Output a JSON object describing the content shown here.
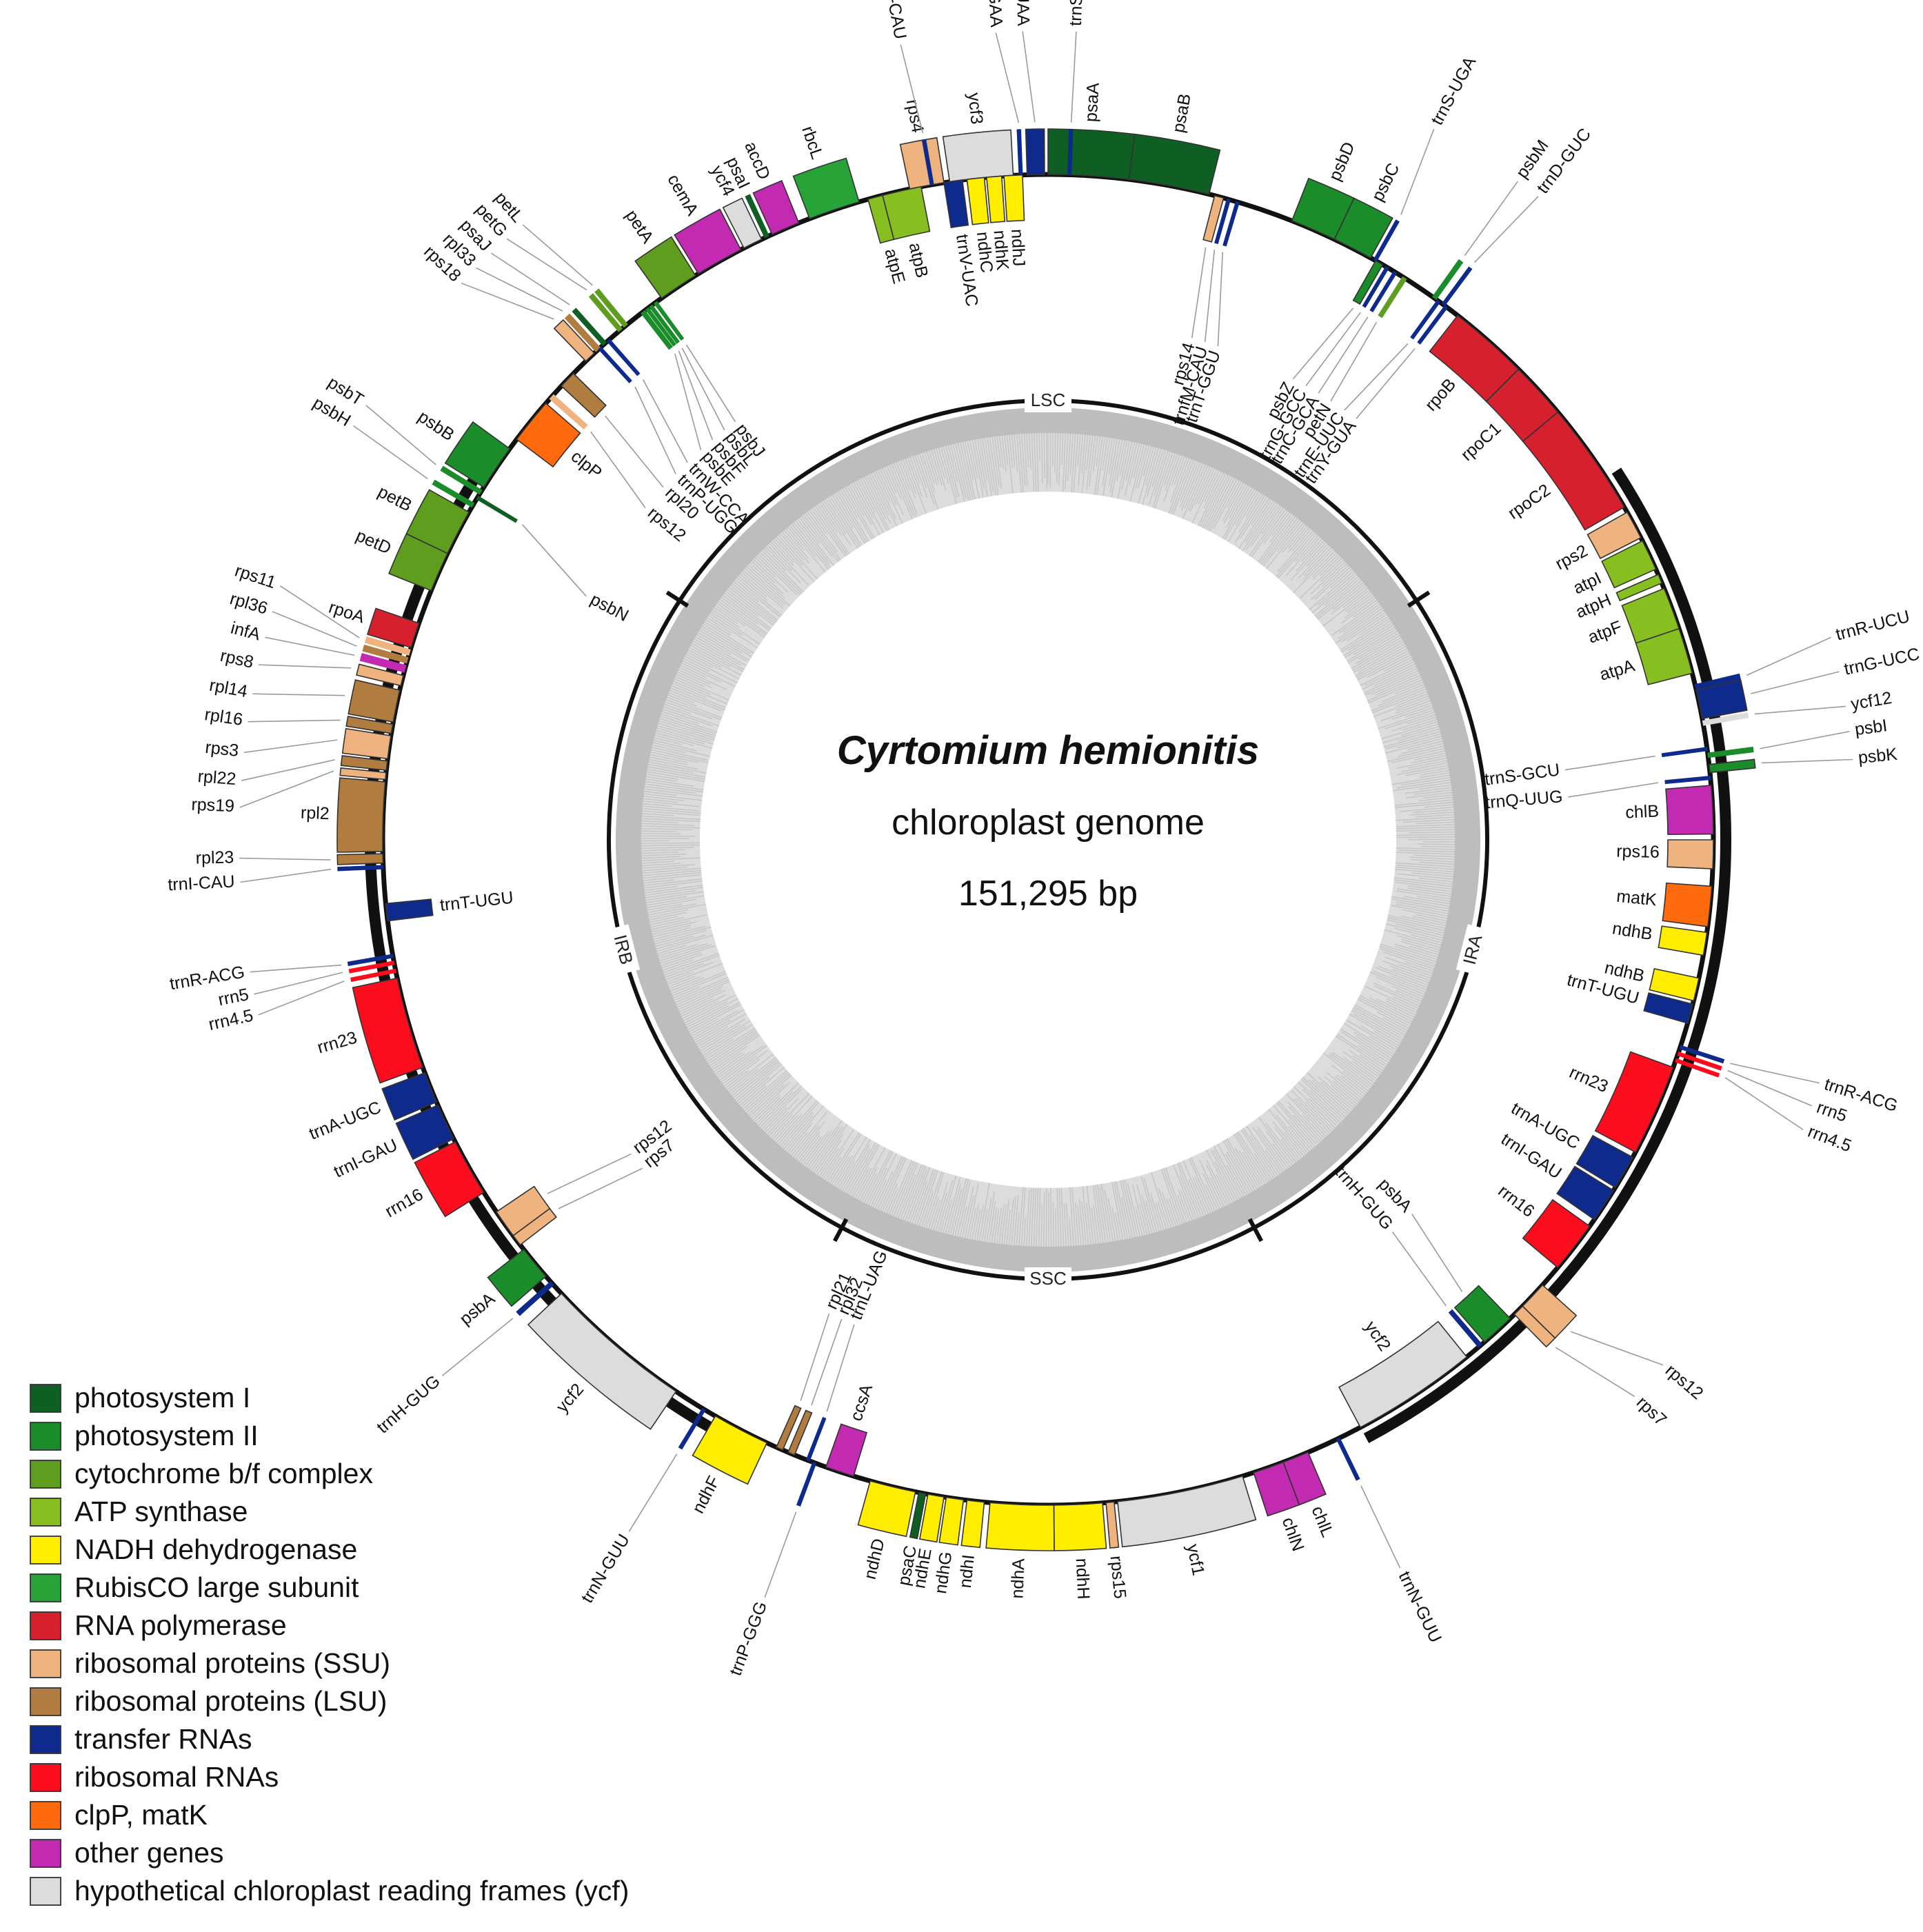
{
  "title": {
    "species": "Cyrtomium hemionitis",
    "subtitle": "chloroplast genome",
    "length": "151,295 bp"
  },
  "categories": {
    "psi": {
      "label": "photosystem I",
      "color": "#0f5f24"
    },
    "psii": {
      "label": "photosystem II",
      "color": "#1a8c2a"
    },
    "cyt": {
      "label": "cytochrome b/f complex",
      "color": "#5e9d1e"
    },
    "atp": {
      "label": "ATP synthase",
      "color": "#86bf1f"
    },
    "ndh": {
      "label": "NADH dehydrogenase",
      "color": "#ffee00"
    },
    "rbc": {
      "label": "RubisCO large subunit",
      "color": "#27a337"
    },
    "rpo": {
      "label": "RNA polymerase",
      "color": "#d7202d"
    },
    "ssu": {
      "label": "ribosomal proteins (SSU)",
      "color": "#efb37f"
    },
    "lsu": {
      "label": "ribosomal proteins (LSU)",
      "color": "#b07c40"
    },
    "trna": {
      "label": "transfer RNAs",
      "color": "#0d2a8c"
    },
    "rrna": {
      "label": "ribosomal RNAs",
      "color": "#fb0d1d"
    },
    "clp": {
      "label": "clpP, matK",
      "color": "#ff6a0c"
    },
    "other": {
      "label": "other genes",
      "color": "#c22ab2"
    },
    "ycf": {
      "label": "hypothetical chloroplast reading frames (ycf)",
      "color": "#dcdcdc"
    }
  },
  "legend_order": [
    "psi",
    "psii",
    "cyt",
    "atp",
    "ndh",
    "rbc",
    "rpo",
    "ssu",
    "lsu",
    "trna",
    "rrna",
    "clp",
    "other",
    "ycf"
  ],
  "regions": [
    {
      "name": "LSC",
      "start_deg": 303,
      "end_deg": 57
    },
    {
      "name": "IRA",
      "start_deg": 57,
      "end_deg": 152
    },
    {
      "name": "SSC",
      "start_deg": 152,
      "end_deg": 208
    },
    {
      "name": "IRB",
      "start_deg": 208,
      "end_deg": 303
    }
  ],
  "genes": [
    {
      "name": "rps4",
      "cat": "ssu",
      "start": 348,
      "end": 351,
      "side": "out"
    },
    {
      "name": "ycf3",
      "cat": "ycf",
      "start": 351.5,
      "end": 357,
      "side": "out"
    },
    {
      "name": "psaA",
      "cat": "psi",
      "start": 0,
      "end": 7,
      "side": "out"
    },
    {
      "name": "psaB",
      "cat": "psi",
      "start": 7,
      "end": 14,
      "side": "out"
    },
    {
      "name": "rps14",
      "cat": "ssu",
      "start": 14.5,
      "end": 15.3,
      "side": "in",
      "label_deg": 16
    },
    {
      "name": "trnfM-CAU",
      "cat": "trna",
      "start": 15.6,
      "end": 15.9,
      "side": "in",
      "label_deg": 17.5
    },
    {
      "name": "trnT-GGU",
      "cat": "trna",
      "start": 16.4,
      "end": 16.7,
      "side": "in",
      "label_deg": 19
    },
    {
      "name": "psbD",
      "cat": "psii",
      "start": 21.5,
      "end": 25.5,
      "side": "out"
    },
    {
      "name": "psbC",
      "cat": "psii",
      "start": 25.5,
      "end": 29,
      "side": "out"
    },
    {
      "name": "psbZ",
      "cat": "psii",
      "start": 29.5,
      "end": 30.2,
      "side": "in",
      "label_deg": 28
    },
    {
      "name": "trnG-GCC",
      "cat": "trna",
      "start": 30.5,
      "end": 30.8,
      "side": "in",
      "label_deg": 29.6
    },
    {
      "name": "trnC-GCA",
      "cat": "trna",
      "start": 31.3,
      "end": 31.6,
      "side": "in",
      "label_deg": 31.2
    },
    {
      "name": "petN",
      "cat": "cyt",
      "start": 32.2,
      "end": 32.6,
      "side": "in",
      "label_deg": 32.8
    },
    {
      "name": "trnS-UGA",
      "cat": "trna",
      "start": 29.3,
      "end": 29.6,
      "side": "out",
      "label_deg": 28.5
    },
    {
      "name": "psbM",
      "cat": "psii",
      "start": 35.3,
      "end": 35.7,
      "side": "out",
      "label_deg": 35.5
    },
    {
      "name": "trnD-GUC",
      "cat": "trna",
      "start": 36.3,
      "end": 36.6,
      "side": "out",
      "label_deg": 37.3
    },
    {
      "name": "trnE-UUC",
      "cat": "trna",
      "start": 35.8,
      "end": 36.1,
      "side": "in",
      "label_deg": 34.6
    },
    {
      "name": "trnY-GUA",
      "cat": "trna",
      "start": 36.6,
      "end": 36.9,
      "side": "in",
      "label_deg": 36.2
    },
    {
      "name": "rpoB",
      "cat": "rpo",
      "start": 38,
      "end": 45,
      "side": "in"
    },
    {
      "name": "rpoC1",
      "cat": "rpo",
      "start": 45,
      "end": 50,
      "side": "in"
    },
    {
      "name": "rpoC2",
      "cat": "rpo",
      "start": 50,
      "end": 60,
      "side": "in"
    },
    {
      "name": "rps2",
      "cat": "ssu",
      "start": 60.5,
      "end": 63,
      "side": "in"
    },
    {
      "name": "atpI",
      "cat": "atp",
      "start": 63.3,
      "end": 66,
      "side": "in"
    },
    {
      "name": "atpH",
      "cat": "atp",
      "start": 66.5,
      "end": 67.3,
      "side": "in"
    },
    {
      "name": "atpF",
      "cat": "atp",
      "start": 67.8,
      "end": 71.5,
      "side": "in"
    },
    {
      "name": "atpA",
      "cat": "atp",
      "start": 71.5,
      "end": 75.5,
      "side": "in"
    },
    {
      "name": "trnR-UCU",
      "cat": "trna",
      "start": 76.5,
      "end": 77,
      "side": "out",
      "label_deg": 75.5
    },
    {
      "name": "trnG-UCC",
      "cat": "trna",
      "start": 77,
      "end": 79.5,
      "side": "out",
      "label_deg": 78
    },
    {
      "name": "ycf12",
      "cat": "ycf",
      "start": 79.7,
      "end": 80.1,
      "side": "out",
      "label_deg": 80.5
    },
    {
      "name": "trnS-GCU",
      "cat": "trna",
      "start": 82,
      "end": 82.3,
      "side": "in",
      "label_deg": 82.3
    },
    {
      "name": "psbI",
      "cat": "psii",
      "start": 82.5,
      "end": 82.9,
      "side": "out",
      "label_deg": 82.3
    },
    {
      "name": "psbK",
      "cat": "psii",
      "start": 83.5,
      "end": 84.2,
      "side": "out",
      "label_deg": 84.3
    },
    {
      "name": "trnQ-UUG",
      "cat": "trna",
      "start": 84.5,
      "end": 84.8,
      "side": "in",
      "label_deg": 85.3
    },
    {
      "name": "chlB",
      "cat": "other",
      "start": 85.3,
      "end": 89.5,
      "side": "in"
    },
    {
      "name": "rps16",
      "cat": "ssu",
      "start": 90,
      "end": 92.5,
      "side": "in"
    },
    {
      "name": "matK",
      "cat": "clp",
      "start": 94,
      "end": 97.5,
      "side": "in"
    },
    {
      "name": "ndhB",
      "cat": "ndh",
      "start": 98,
      "end": 100,
      "side": "in"
    },
    {
      "name": "ndhB",
      "cat": "ndh",
      "start": 102,
      "end": 104,
      "side": "in"
    },
    {
      "name": "trnT-UGU",
      "cat": "trna",
      "start": 104.3,
      "end": 106,
      "side": "in"
    },
    {
      "name": "trnR-ACG",
      "cat": "trna",
      "start": 108,
      "end": 108.3,
      "side": "out",
      "label_deg": 107.5
    },
    {
      "name": "rrn5",
      "cat": "rrna",
      "start": 108.6,
      "end": 108.9,
      "side": "out",
      "label_deg": 109.2
    },
    {
      "name": "rrn4.5",
      "cat": "rrna",
      "start": 109.2,
      "end": 109.5,
      "side": "out",
      "label_deg": 111
    },
    {
      "name": "rrn23",
      "cat": "rrna",
      "start": 110,
      "end": 118,
      "side": "in"
    },
    {
      "name": "trnA-UGC",
      "cat": "trna",
      "start": 118.5,
      "end": 121.5,
      "side": "in"
    },
    {
      "name": "trnI-GAU",
      "cat": "trna",
      "start": 121.8,
      "end": 124.8,
      "side": "in"
    },
    {
      "name": "rrn16",
      "cat": "rrna",
      "start": 125.5,
      "end": 130,
      "side": "in"
    },
    {
      "name": "rps12",
      "cat": "ssu",
      "start": 132,
      "end": 134.5,
      "side": "out",
      "label_deg": 130.5
    },
    {
      "name": "rps7",
      "cat": "ssu",
      "start": 134.5,
      "end": 135.5,
      "side": "out",
      "label_deg": 133.5
    },
    {
      "name": "psbA",
      "cat": "psii",
      "start": 136,
      "end": 139,
      "side": "in",
      "label_deg": 135.8
    },
    {
      "name": "trnH-GUG",
      "cat": "trna",
      "start": 139.3,
      "end": 139.7,
      "side": "in",
      "label_deg": 138.7
    },
    {
      "name": "ycf2",
      "cat": "ycf",
      "start": 141,
      "end": 152,
      "side": "in"
    },
    {
      "name": "trnN-GUU",
      "cat": "trna",
      "start": 154,
      "end": 154.3,
      "side": "out",
      "label_deg": 154.2
    },
    {
      "name": "chlL",
      "cat": "other",
      "start": 157,
      "end": 159.3,
      "side": "out"
    },
    {
      "name": "chlN",
      "cat": "other",
      "start": 159.3,
      "end": 162,
      "side": "out"
    },
    {
      "name": "ycf1",
      "cat": "ycf",
      "start": 163,
      "end": 174,
      "side": "out"
    },
    {
      "name": "rps15",
      "cat": "ssu",
      "start": 174.3,
      "end": 175,
      "side": "out"
    },
    {
      "name": "ndhH",
      "cat": "ndh",
      "start": 175.3,
      "end": 179.5,
      "side": "out"
    },
    {
      "name": "ndhA",
      "cat": "ndh",
      "start": 179.5,
      "end": 185,
      "side": "out"
    },
    {
      "name": "ndhI",
      "cat": "ndh",
      "start": 185.5,
      "end": 187,
      "side": "out"
    },
    {
      "name": "ndhG",
      "cat": "ndh",
      "start": 187.3,
      "end": 188.8,
      "side": "out"
    },
    {
      "name": "ndhE",
      "cat": "ndh",
      "start": 189,
      "end": 190.4,
      "side": "out"
    },
    {
      "name": "psaC",
      "cat": "psi",
      "start": 190.6,
      "end": 191.2,
      "side": "out"
    },
    {
      "name": "ndhD",
      "cat": "ndh",
      "start": 191.5,
      "end": 195.5,
      "side": "out"
    },
    {
      "name": "ccsA",
      "cat": "other",
      "start": 197,
      "end": 199.5,
      "side": "in"
    },
    {
      "name": "trnP-GGG",
      "cat": "trna",
      "start": 200.4,
      "end": 200.7,
      "side": "out",
      "label_deg": 200.5
    },
    {
      "name": "trnL-UAG",
      "cat": "trna",
      "start": 201,
      "end": 201.3,
      "side": "in",
      "label_deg": 201.8
    },
    {
      "name": "rpl32",
      "cat": "lsu",
      "start": 202.4,
      "end": 203,
      "side": "in",
      "label_deg": 203.3
    },
    {
      "name": "rpl21",
      "cat": "lsu",
      "start": 203.5,
      "end": 204.1,
      "side": "in",
      "label_deg": 204.8
    },
    {
      "name": "ndhF",
      "cat": "ndh",
      "start": 205,
      "end": 210,
      "side": "out"
    },
    {
      "name": "trnN-GUU",
      "cat": "trna",
      "start": 211,
      "end": 211.3,
      "side": "out",
      "label_deg": 211.2
    },
    {
      "name": "ycf2",
      "cat": "ycf",
      "start": 214,
      "end": 227,
      "side": "out"
    },
    {
      "name": "trnH-GUG",
      "cat": "trna",
      "start": 228,
      "end": 228.4,
      "side": "out",
      "label_deg": 228.5
    },
    {
      "name": "psbA",
      "cat": "psii",
      "start": 229,
      "end": 232,
      "side": "out"
    },
    {
      "name": "rps7",
      "cat": "ssu",
      "start": 232.5,
      "end": 233.5,
      "side": "in",
      "label_deg": 231
    },
    {
      "name": "rps12",
      "cat": "ssu",
      "start": 233.5,
      "end": 236,
      "side": "in",
      "label_deg": 233
    },
    {
      "name": "rrn16",
      "cat": "rrna",
      "start": 238,
      "end": 243,
      "side": "out"
    },
    {
      "name": "trnI-GAU",
      "cat": "trna",
      "start": 243.3,
      "end": 246.5,
      "side": "out"
    },
    {
      "name": "trnA-UGC",
      "cat": "trna",
      "start": 246.8,
      "end": 249.5,
      "side": "out"
    },
    {
      "name": "rrn23",
      "cat": "rrna",
      "start": 250,
      "end": 258,
      "side": "out"
    },
    {
      "name": "rrn4.5",
      "cat": "rrna",
      "start": 258.5,
      "end": 258.8,
      "side": "out",
      "label_deg": 257.5
    },
    {
      "name": "rrn5",
      "cat": "rrna",
      "start": 259.2,
      "end": 259.5,
      "side": "out",
      "label_deg": 259
    },
    {
      "name": "trnR-ACG",
      "cat": "trna",
      "start": 259.8,
      "end": 260.1,
      "side": "out",
      "label_deg": 260.6
    },
    {
      "name": "trnT-UGU",
      "cat": "trna",
      "start": 263,
      "end": 264.5,
      "side": "in"
    },
    {
      "name": "trnI-CAU",
      "cat": "trna",
      "start": 267.5,
      "end": 267.8,
      "side": "out",
      "label_deg": 267
    },
    {
      "name": "rpl23",
      "cat": "lsu",
      "start": 268,
      "end": 268.8,
      "side": "out",
      "label_deg": 268.7
    },
    {
      "name": "rpl2",
      "cat": "lsu",
      "start": 269,
      "end": 275,
      "side": "out"
    },
    {
      "name": "rps19",
      "cat": "ssu",
      "start": 275.2,
      "end": 275.8,
      "side": "out",
      "label_deg": 272.3
    },
    {
      "name": "rpl22",
      "cat": "lsu",
      "start": 276,
      "end": 276.8,
      "side": "out",
      "label_deg": 274.2
    },
    {
      "name": "rps3",
      "cat": "ssu",
      "start": 277,
      "end": 279,
      "side": "out",
      "label_deg": 276.2
    },
    {
      "name": "rpl16",
      "cat": "lsu",
      "start": 279.2,
      "end": 280,
      "side": "out",
      "label_deg": 278.4
    },
    {
      "name": "rpl14",
      "cat": "lsu",
      "start": 280.2,
      "end": 283,
      "side": "out",
      "label_deg": 280.4
    },
    {
      "name": "rps8",
      "cat": "ssu",
      "start": 283.4,
      "end": 284.3,
      "side": "out",
      "label_deg": 282.5
    },
    {
      "name": "infA",
      "cat": "other",
      "start": 284.6,
      "end": 285.2,
      "side": "out",
      "label_deg": 284.5
    },
    {
      "name": "rpl36",
      "cat": "lsu",
      "start": 285.4,
      "end": 285.9,
      "side": "out",
      "label_deg": 286.4
    },
    {
      "name": "rps11",
      "cat": "ssu",
      "start": 286.1,
      "end": 286.6,
      "side": "out",
      "label_deg": 288.3
    },
    {
      "name": "rpoA",
      "cat": "rpo",
      "start": 286.8,
      "end": 289,
      "side": "out"
    },
    {
      "name": "petD",
      "cat": "cyt",
      "start": 292,
      "end": 295.5,
      "side": "out"
    },
    {
      "name": "petB",
      "cat": "cyt",
      "start": 295.5,
      "end": 299.5,
      "side": "out"
    },
    {
      "name": "psbH",
      "cat": "psii",
      "start": 300,
      "end": 300.4,
      "side": "out",
      "label_deg": 300.8
    },
    {
      "name": "psbN",
      "cat": "psi",
      "start": 300.8,
      "end": 301.1,
      "side": "in",
      "label_deg": 297.8
    },
    {
      "name": "psbT",
      "cat": "psii",
      "start": 301.3,
      "end": 301.7,
      "side": "out",
      "label_deg": 302.5
    },
    {
      "name": "psbB",
      "cat": "psii",
      "start": 302,
      "end": 306,
      "side": "out"
    },
    {
      "name": "clpP",
      "cat": "clp",
      "start": 307,
      "end": 311,
      "side": "in"
    },
    {
      "name": "rps12",
      "cat": "ssu",
      "start": 311.5,
      "end": 312,
      "side": "in",
      "label_deg": 309.5
    },
    {
      "name": "rpl20",
      "cat": "lsu",
      "start": 313,
      "end": 314.5,
      "side": "in",
      "label_deg": 312.5
    },
    {
      "name": "rps18",
      "cat": "ssu",
      "start": 316,
      "end": 317,
      "side": "out",
      "label_deg": 313.5
    },
    {
      "name": "rpl33",
      "cat": "lsu",
      "start": 317.2,
      "end": 317.7,
      "side": "out",
      "label_deg": 315
    },
    {
      "name": "trnP-UGG",
      "cat": "trna",
      "start": 317.5,
      "end": 317.8,
      "side": "in",
      "label_deg": 314.5
    },
    {
      "name": "psaJ",
      "cat": "psi",
      "start": 318,
      "end": 318.4,
      "side": "out",
      "label_deg": 316.5
    },
    {
      "name": "trnW-CCA",
      "cat": "trna",
      "start": 318.5,
      "end": 318.8,
      "side": "in",
      "label_deg": 316.3
    },
    {
      "name": "petG",
      "cat": "cyt",
      "start": 319.8,
      "end": 320.2,
      "side": "out",
      "label_deg": 318
    },
    {
      "name": "petL",
      "cat": "cyt",
      "start": 320.4,
      "end": 320.8,
      "side": "out",
      "label_deg": 319.5
    },
    {
      "name": "psbE",
      "cat": "psii",
      "start": 322.3,
      "end": 322.7,
      "side": "in",
      "label_deg": 318.3
    },
    {
      "name": "psbF",
      "cat": "psii",
      "start": 322.8,
      "end": 323.1,
      "side": "in",
      "label_deg": 320
    },
    {
      "name": "psbL",
      "cat": "psii",
      "start": 323.2,
      "end": 323.5,
      "side": "in",
      "label_deg": 321.7
    },
    {
      "name": "psbJ",
      "cat": "psii",
      "start": 323.7,
      "end": 324,
      "side": "in",
      "label_deg": 323.2
    },
    {
      "name": "petA",
      "cat": "cyt",
      "start": 324.5,
      "end": 328,
      "side": "out"
    },
    {
      "name": "cemA",
      "cat": "other",
      "start": 328.3,
      "end": 332.5,
      "side": "out"
    },
    {
      "name": "ycf4",
      "cat": "ycf",
      "start": 332.8,
      "end": 334.5,
      "side": "out"
    },
    {
      "name": "psaI",
      "cat": "psi",
      "start": 334.8,
      "end": 335.2,
      "side": "out"
    },
    {
      "name": "accD",
      "cat": "other",
      "start": 335.5,
      "end": 338,
      "side": "out"
    },
    {
      "name": "rbcL",
      "cat": "rbc",
      "start": 339,
      "end": 343.5,
      "side": "out"
    },
    {
      "name": "atpE",
      "cat": "atp",
      "start": 344.3,
      "end": 345.6,
      "side": "in"
    },
    {
      "name": "atpB",
      "cat": "atp",
      "start": 345.6,
      "end": 349,
      "side": "in"
    },
    {
      "name": "trnM-CAU",
      "cat": "trna",
      "start": 349.8,
      "end": 350.1,
      "side": "out",
      "label_deg": 349.5
    },
    {
      "name": "trnV-UAC",
      "cat": "trna",
      "start": 351,
      "end": 352.6,
      "side": "in"
    },
    {
      "name": "ndhC",
      "cat": "ndh",
      "start": 353,
      "end": 354.5,
      "side": "in"
    },
    {
      "name": "ndhK",
      "cat": "ndh",
      "start": 354.7,
      "end": 356,
      "side": "in"
    },
    {
      "name": "ndhJ",
      "cat": "ndh",
      "start": 356.2,
      "end": 357.8,
      "side": "in"
    },
    {
      "name": "trnF-GAA",
      "cat": "trna",
      "start": 357.5,
      "end": 357.8,
      "side": "out",
      "label_deg": 356.3
    },
    {
      "name": "trnL-UAA",
      "cat": "trna",
      "start": 358.2,
      "end": 359.7,
      "side": "out",
      "label_deg": 358.2
    },
    {
      "name": "trnS-GGA",
      "cat": "trna",
      "start": 1.7,
      "end": 2,
      "side": "out",
      "label_deg": 2
    }
  ]
}
